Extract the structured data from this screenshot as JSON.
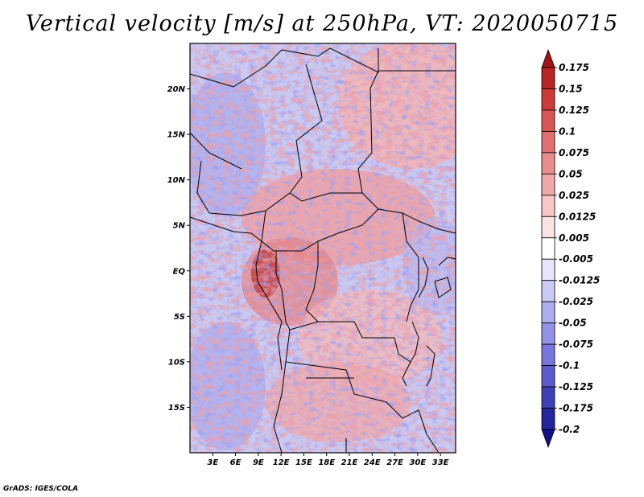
{
  "title": "Vertical velocity [m/s] at 250hPa, VT: 2020050715",
  "credit": "GrADS: IGES/COLA",
  "map": {
    "lat_labels": [
      "20N",
      "15N",
      "10N",
      "5N",
      "EQ",
      "5S",
      "10S",
      "15S"
    ],
    "lat_values": [
      20,
      15,
      10,
      5,
      0,
      -5,
      -10,
      -15
    ],
    "lon_labels": [
      "3E",
      "6E",
      "9E",
      "12E",
      "15E",
      "18E",
      "21E",
      "24E",
      "27E",
      "30E",
      "33E"
    ],
    "lon_values": [
      3,
      6,
      9,
      12,
      15,
      18,
      21,
      24,
      27,
      30,
      33
    ],
    "lon_range": [
      0,
      35
    ],
    "lat_range": [
      -20,
      25
    ]
  },
  "colorbar": {
    "labels": [
      "0.175",
      "0.15",
      "0.125",
      "0.1",
      "0.075",
      "0.05",
      "0.025",
      "0.0125",
      "0.005",
      "-0.005",
      "-0.0125",
      "-0.025",
      "-0.05",
      "-0.075",
      "-0.1",
      "-0.125",
      "-0.175",
      "-0.2"
    ],
    "colors": [
      "#a01414",
      "#b82323",
      "#cc3a3a",
      "#d95555",
      "#e07070",
      "#e88c8c",
      "#f0a8a8",
      "#f7c6c6",
      "#fce3e3",
      "#ffffff",
      "#e6e6fb",
      "#cacaf5",
      "#aeaeee",
      "#9393e6",
      "#7777db",
      "#5b5bcc",
      "#3f3fb8",
      "#25259c",
      "#12128a"
    ]
  }
}
